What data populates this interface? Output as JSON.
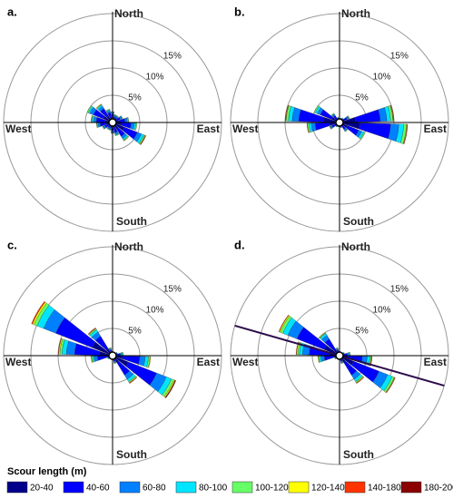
{
  "legend": {
    "title": "Scour length (m)",
    "items": [
      {
        "name": "20-40",
        "color": "#00008b"
      },
      {
        "name": "40-60",
        "color": "#0000ff"
      },
      {
        "name": "60-80",
        "color": "#0080ff"
      },
      {
        "name": "80-100",
        "color": "#00e5ff"
      },
      {
        "name": "100-120",
        "color": "#66ff66"
      },
      {
        "name": "120-140",
        "color": "#ffff00"
      },
      {
        "name": "140-180",
        "color": "#ff3300"
      },
      {
        "name": "180-200",
        "color": "#8b0000"
      }
    ]
  },
  "chart_data": [
    {
      "type": "rose",
      "label": "a.",
      "north": "North",
      "east": "East",
      "south": "South",
      "west": "West",
      "theta": [
        0,
        20,
        40,
        60,
        80,
        100,
        120,
        140,
        160,
        180,
        200,
        220,
        240,
        260,
        280,
        300,
        320,
        340
      ],
      "rlim": [
        0,
        20
      ],
      "rticks": [
        {
          "value": 5,
          "label": "5%"
        },
        {
          "value": 10,
          "label": "10%"
        },
        {
          "value": 15,
          "label": "15%"
        }
      ],
      "series": [
        {
          "values": [
            0.7,
            0.5,
            0.5,
            0.7,
            1.1,
            1.6,
            2.3,
            1.4,
            0.9,
            0.7,
            0.5,
            0.5,
            0.7,
            1.1,
            1.4,
            1.8,
            1.4,
            0.9
          ]
        },
        {
          "values": [
            0.8,
            0.6,
            0.6,
            0.8,
            1.2,
            1.8,
            2.6,
            1.6,
            1.0,
            0.8,
            0.6,
            0.6,
            0.8,
            1.2,
            1.6,
            2.0,
            1.6,
            1.0
          ]
        },
        {
          "values": [
            0.3,
            0.2,
            0.2,
            0.3,
            0.4,
            0.6,
            0.8,
            0.5,
            0.3,
            0.3,
            0.2,
            0.2,
            0.3,
            0.4,
            0.5,
            0.7,
            0.5,
            0.3
          ]
        },
        {
          "values": [
            0.1,
            0.1,
            0.1,
            0.1,
            0.2,
            0.3,
            0.5,
            0.3,
            0.2,
            0.1,
            0.1,
            0.1,
            0.1,
            0.2,
            0.3,
            0.3,
            0.3,
            0.2
          ]
        },
        {
          "values": [
            0.1,
            0.1,
            0.1,
            0.1,
            0.1,
            0.2,
            0.2,
            0.1,
            0.1,
            0.1,
            0.1,
            0.1,
            0.1,
            0.1,
            0.1,
            0.2,
            0.1,
            0.1
          ]
        },
        {
          "values": [
            0,
            0,
            0,
            0,
            0,
            0,
            0.1,
            0.1,
            0,
            0,
            0,
            0,
            0,
            0,
            0.1,
            0,
            0.1,
            0
          ]
        },
        {
          "values": [
            0,
            0,
            0,
            0,
            0,
            0,
            0.1,
            0,
            0,
            0,
            0,
            0,
            0,
            0,
            0,
            0,
            0,
            0
          ]
        },
        {
          "values": [
            0,
            0,
            0,
            0,
            0,
            0,
            0,
            0,
            0,
            0,
            0,
            0,
            0,
            0,
            0,
            0,
            0,
            0
          ]
        }
      ]
    },
    {
      "type": "rose",
      "label": "b.",
      "north": "North",
      "east": "East",
      "south": "South",
      "west": "West",
      "theta": [
        0,
        20,
        40,
        60,
        80,
        100,
        120,
        140,
        160,
        180,
        200,
        220,
        240,
        260,
        280,
        300,
        320,
        340
      ],
      "rlim": [
        0,
        20
      ],
      "rticks": [
        {
          "value": 5,
          "label": "5%"
        },
        {
          "value": 10,
          "label": "10%"
        },
        {
          "value": 15,
          "label": "15%"
        }
      ],
      "series": [
        {
          "values": [
            0.2,
            0.2,
            0.3,
            0.6,
            3.0,
            3.8,
            1.5,
            0.6,
            0.3,
            0.2,
            0.2,
            0.3,
            0.6,
            1.8,
            3.0,
            1.5,
            0.6,
            0.3
          ]
        },
        {
          "values": [
            0.4,
            0.4,
            0.5,
            0.9,
            4.5,
            5.6,
            2.3,
            0.9,
            0.5,
            0.4,
            0.4,
            0.5,
            0.9,
            2.7,
            4.5,
            2.3,
            0.9,
            0.5
          ]
        },
        {
          "values": [
            0.1,
            0.1,
            0.1,
            0.3,
            1.2,
            1.5,
            0.6,
            0.3,
            0.1,
            0.1,
            0.1,
            0.1,
            0.3,
            0.7,
            1.2,
            0.6,
            0.3,
            0.1
          ]
        },
        {
          "values": [
            0.1,
            0.1,
            0.1,
            0.1,
            0.7,
            0.9,
            0.4,
            0.1,
            0.1,
            0.1,
            0.1,
            0.1,
            0.1,
            0.4,
            0.7,
            0.4,
            0.1,
            0.1
          ]
        },
        {
          "values": [
            0,
            0,
            0,
            0.1,
            0.4,
            0.5,
            0.2,
            0.1,
            0,
            0,
            0,
            0,
            0.1,
            0.3,
            0.4,
            0.2,
            0.1,
            0
          ]
        },
        {
          "values": [
            0,
            0,
            0,
            0,
            0.1,
            0.1,
            0,
            0,
            0,
            0,
            0,
            0,
            0,
            0,
            0.1,
            0,
            0,
            0
          ]
        },
        {
          "values": [
            0,
            0,
            0,
            0,
            0.1,
            0.1,
            0,
            0,
            0,
            0,
            0,
            0,
            0,
            0.1,
            0.1,
            0,
            0,
            0
          ]
        },
        {
          "values": [
            0,
            0,
            0,
            0,
            0,
            0,
            0,
            0,
            0,
            0,
            0,
            0,
            0,
            0,
            0,
            0,
            0,
            0
          ]
        }
      ]
    },
    {
      "type": "rose",
      "label": "c.",
      "north": "North",
      "east": "East",
      "south": "South",
      "west": "West",
      "theta": [
        0,
        20,
        40,
        60,
        80,
        100,
        120,
        140,
        160,
        180,
        200,
        220,
        240,
        260,
        280,
        300,
        320,
        340
      ],
      "rlim": [
        0,
        20
      ],
      "rticks": [
        {
          "value": 5,
          "label": "5%"
        },
        {
          "value": 10,
          "label": "10%"
        },
        {
          "value": 15,
          "label": "15%"
        }
      ],
      "series": [
        {
          "values": [
            0.2,
            0.2,
            0.2,
            0.3,
            0.5,
            1.8,
            3.1,
            1.5,
            0.4,
            0.2,
            0.2,
            0.2,
            0.3,
            1.0,
            2.5,
            4.0,
            1.5,
            0.4
          ]
        },
        {
          "values": [
            0.4,
            0.3,
            0.3,
            0.5,
            0.9,
            3.2,
            5.6,
            2.7,
            0.7,
            0.4,
            0.3,
            0.3,
            0.5,
            1.8,
            4.5,
            7.2,
            2.7,
            0.7
          ]
        },
        {
          "values": [
            0.1,
            0.1,
            0.1,
            0.1,
            0.3,
            1.0,
            1.9,
            0.9,
            0.2,
            0.1,
            0.1,
            0.1,
            0.1,
            0.6,
            1.5,
            2.4,
            0.9,
            0.2
          ]
        },
        {
          "values": [
            0.1,
            0,
            0,
            0.1,
            0.2,
            0.6,
            1.0,
            0.5,
            0.1,
            0.1,
            0,
            0,
            0.1,
            0.3,
            0.8,
            1.3,
            0.5,
            0.1
          ]
        },
        {
          "values": [
            0,
            0,
            0,
            0,
            0.1,
            0.3,
            0.5,
            0.2,
            0.1,
            0,
            0,
            0,
            0,
            0.2,
            0.4,
            0.6,
            0.2,
            0.1
          ]
        },
        {
          "values": [
            0,
            0,
            0,
            0,
            0,
            0.1,
            0.2,
            0.1,
            0,
            0,
            0,
            0,
            0,
            0.1,
            0.2,
            0.3,
            0.1,
            0
          ]
        },
        {
          "values": [
            0,
            0,
            0,
            0,
            0,
            0,
            0.1,
            0.1,
            0,
            0,
            0,
            0,
            0,
            0,
            0.1,
            0.2,
            0.1,
            0
          ]
        },
        {
          "values": [
            0,
            0,
            0,
            0,
            0,
            0,
            0.1,
            0,
            0,
            0,
            0,
            0,
            0,
            0,
            0,
            0,
            0,
            0
          ]
        }
      ]
    },
    {
      "type": "rose",
      "label": "d.",
      "north": "North",
      "east": "East",
      "south": "South",
      "west": "West",
      "theta": [
        0,
        20,
        40,
        60,
        80,
        100,
        120,
        140,
        160,
        180,
        200,
        220,
        240,
        260,
        280,
        300,
        320,
        340
      ],
      "rlim": [
        0,
        20
      ],
      "rticks": [
        {
          "value": 5,
          "label": "5%"
        },
        {
          "value": 10,
          "label": "10%"
        },
        {
          "value": 15,
          "label": "15%"
        }
      ],
      "trend_azimuth": 106,
      "trend_color": "#2a0a4a",
      "series": [
        {
          "values": [
            0.2,
            0.2,
            0.2,
            0.3,
            0.5,
            1.5,
            2.8,
            1.5,
            0.4,
            0.2,
            0.2,
            0.2,
            0.3,
            1.0,
            2.0,
            3.0,
            1.3,
            0.4
          ]
        },
        {
          "values": [
            0.4,
            0.3,
            0.3,
            0.5,
            0.9,
            2.7,
            5.0,
            2.7,
            0.7,
            0.4,
            0.3,
            0.3,
            0.5,
            1.8,
            3.6,
            5.4,
            2.3,
            0.7
          ]
        },
        {
          "values": [
            0.1,
            0.1,
            0.1,
            0.1,
            0.3,
            0.9,
            1.7,
            0.9,
            0.2,
            0.1,
            0.1,
            0.1,
            0.1,
            0.6,
            1.2,
            1.8,
            0.8,
            0.2
          ]
        },
        {
          "values": [
            0.1,
            0,
            0,
            0.1,
            0.2,
            0.5,
            0.9,
            0.5,
            0.1,
            0.1,
            0,
            0,
            0.1,
            0.3,
            0.6,
            1.0,
            0.4,
            0.1
          ]
        },
        {
          "values": [
            0,
            0,
            0,
            0,
            0.1,
            0.2,
            0.4,
            0.2,
            0.1,
            0,
            0,
            0,
            0,
            0.2,
            0.3,
            0.5,
            0.1,
            0.1
          ]
        },
        {
          "values": [
            0,
            0,
            0,
            0,
            0,
            0.1,
            0.1,
            0.1,
            0,
            0,
            0,
            0,
            0,
            0.1,
            0.2,
            0.2,
            0.1,
            0
          ]
        },
        {
          "values": [
            0,
            0,
            0,
            0,
            0,
            0.1,
            0.1,
            0.1,
            0,
            0,
            0,
            0,
            0,
            0,
            0.1,
            0.1,
            0,
            0
          ]
        },
        {
          "values": [
            0,
            0,
            0,
            0,
            0,
            0,
            0,
            0,
            0,
            0,
            0,
            0,
            0,
            0,
            0,
            0,
            0,
            0
          ]
        }
      ]
    }
  ]
}
